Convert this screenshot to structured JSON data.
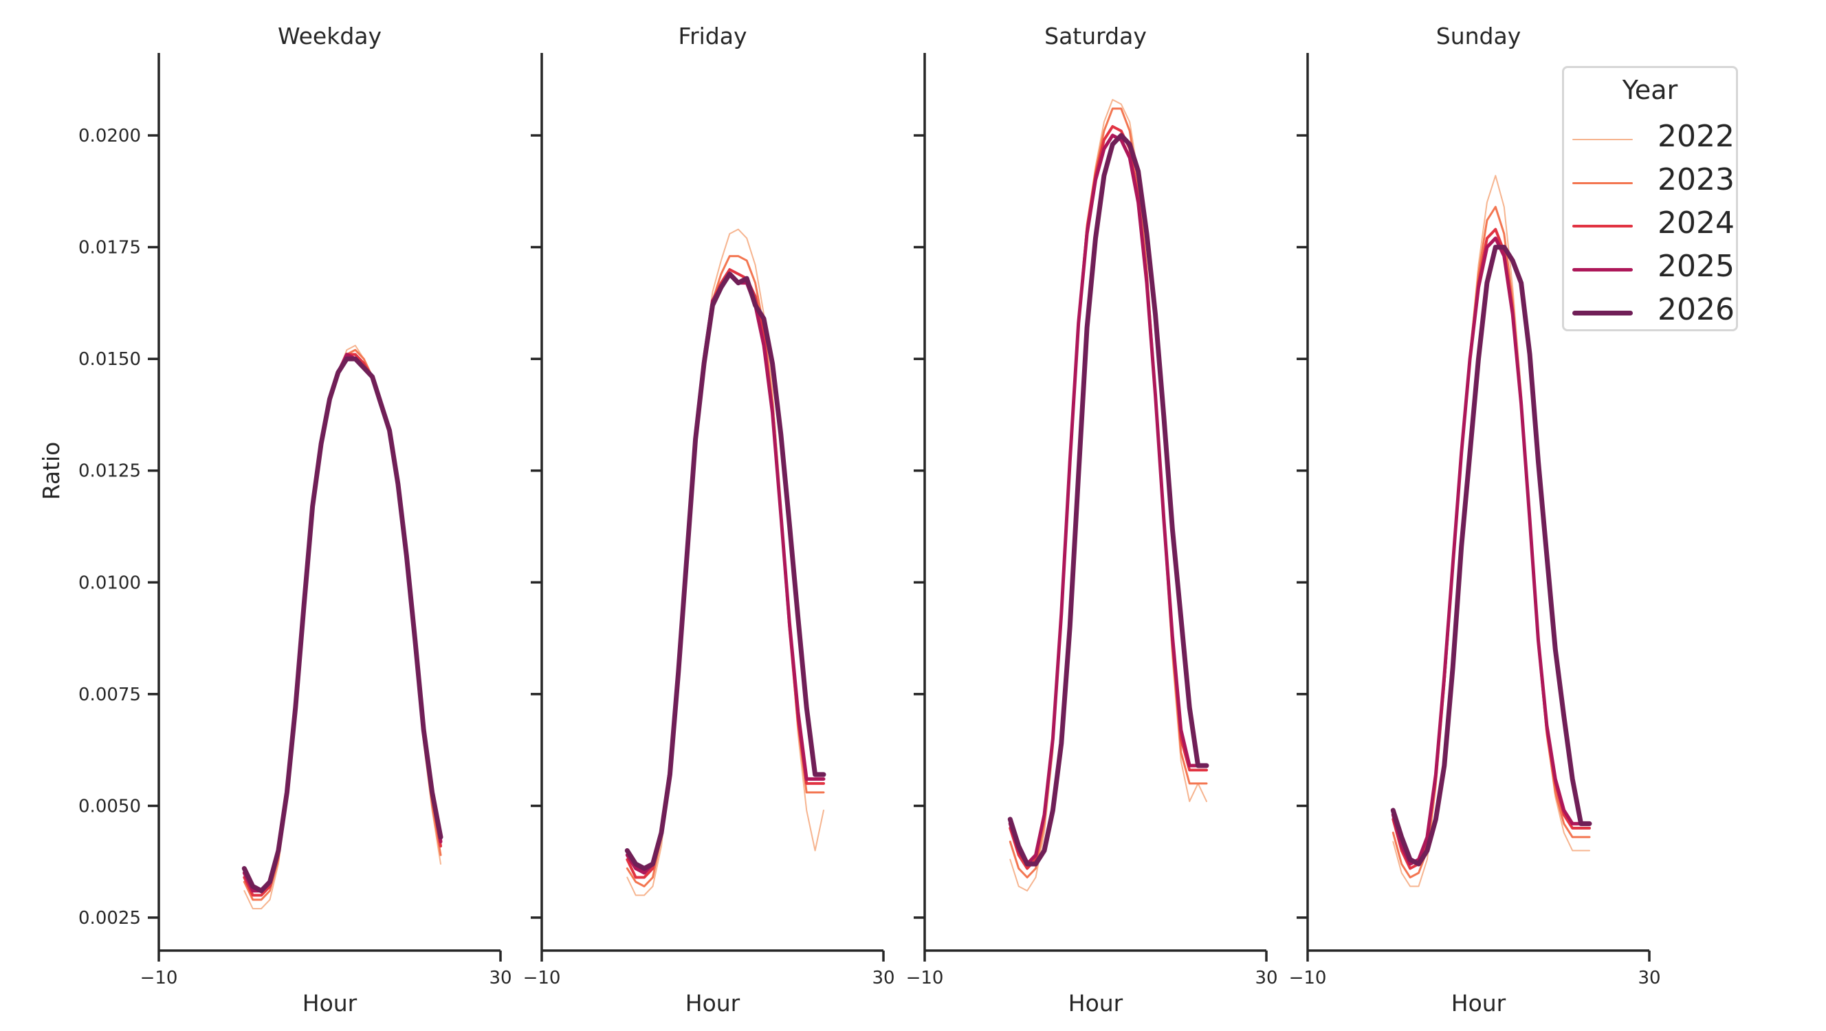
{
  "chart_data": {
    "type": "line",
    "layout": "facet-columns",
    "panels": [
      "Weekday",
      "Friday",
      "Saturday",
      "Sunday"
    ],
    "xlabel": "Hour",
    "ylabel": "Ratio",
    "xlim": [
      -10,
      30
    ],
    "xticks": [
      -10,
      30
    ],
    "ylim": [
      0.00175,
      0.02185
    ],
    "yticks": [
      0.0025,
      0.005,
      0.0075,
      0.01,
      0.0125,
      0.015,
      0.0175,
      0.02
    ],
    "ytick_labels": [
      "0.0025",
      "0.0050",
      "0.0075",
      "0.0100",
      "0.0125",
      "0.0150",
      "0.0175",
      "0.0200"
    ],
    "grid": false,
    "legend": {
      "title": "Year",
      "position": "upper right"
    },
    "x": [
      0,
      1,
      2,
      3,
      4,
      5,
      6,
      7,
      8,
      9,
      10,
      11,
      12,
      13,
      14,
      15,
      16,
      17,
      18,
      19,
      20,
      21,
      22,
      23
    ],
    "series": [
      {
        "name": "2022",
        "color": "#f6b48f",
        "width": 2,
        "panels": {
          "Weekday": [
            0.0031,
            0.0027,
            0.0027,
            0.0029,
            0.0037,
            0.0051,
            0.0071,
            0.0094,
            0.0116,
            0.0131,
            0.0141,
            0.0147,
            0.0152,
            0.0153,
            0.015,
            0.0146,
            0.014,
            0.0133,
            0.0121,
            0.0104,
            0.0084,
            0.0064,
            0.0049,
            0.0037
          ],
          "Friday": [
            0.0034,
            0.003,
            0.003,
            0.0032,
            0.0041,
            0.0057,
            0.008,
            0.0106,
            0.0132,
            0.0151,
            0.0165,
            0.0172,
            0.0178,
            0.0179,
            0.0177,
            0.0171,
            0.016,
            0.0143,
            0.0118,
            0.009,
            0.0066,
            0.0049,
            0.004,
            0.0049
          ],
          "Saturday": [
            0.0038,
            0.0032,
            0.0031,
            0.0034,
            0.0044,
            0.0062,
            0.0091,
            0.0125,
            0.0158,
            0.018,
            0.0193,
            0.0203,
            0.0208,
            0.0207,
            0.0203,
            0.0191,
            0.0171,
            0.0143,
            0.0112,
            0.0083,
            0.006,
            0.0051,
            0.0055,
            0.0051
          ],
          "Sunday": [
            0.0042,
            0.0035,
            0.0032,
            0.0032,
            0.0038,
            0.0054,
            0.0076,
            0.0102,
            0.0128,
            0.0151,
            0.0171,
            0.0185,
            0.0191,
            0.0184,
            0.0166,
            0.0143,
            0.0115,
            0.0086,
            0.0066,
            0.0052,
            0.0044,
            0.004,
            0.004,
            0.004
          ]
        }
      },
      {
        "name": "2023",
        "color": "#f37651",
        "width": 3,
        "panels": {
          "Weekday": [
            0.0033,
            0.0029,
            0.0029,
            0.0031,
            0.0038,
            0.0052,
            0.0072,
            0.0095,
            0.0117,
            0.0131,
            0.0141,
            0.0147,
            0.0151,
            0.0152,
            0.015,
            0.0146,
            0.014,
            0.0133,
            0.0121,
            0.0105,
            0.0085,
            0.0065,
            0.005,
            0.0039
          ],
          "Friday": [
            0.0036,
            0.0033,
            0.0032,
            0.0034,
            0.0043,
            0.0058,
            0.0081,
            0.0107,
            0.0133,
            0.015,
            0.0163,
            0.0169,
            0.0173,
            0.0173,
            0.0172,
            0.0167,
            0.0157,
            0.014,
            0.0116,
            0.009,
            0.0068,
            0.0053,
            0.0053,
            0.0053
          ],
          "Saturday": [
            0.0042,
            0.0036,
            0.0034,
            0.0036,
            0.0046,
            0.0064,
            0.0092,
            0.0126,
            0.0158,
            0.018,
            0.0192,
            0.0201,
            0.0206,
            0.0206,
            0.0201,
            0.0189,
            0.017,
            0.0143,
            0.0113,
            0.0085,
            0.0062,
            0.0055,
            0.0055,
            0.0055
          ],
          "Sunday": [
            0.0044,
            0.0037,
            0.0034,
            0.0035,
            0.004,
            0.0055,
            0.0077,
            0.0103,
            0.0129,
            0.0151,
            0.0169,
            0.0181,
            0.0184,
            0.0178,
            0.0163,
            0.0141,
            0.0114,
            0.0086,
            0.0066,
            0.0053,
            0.0046,
            0.0043,
            0.0043,
            0.0043
          ]
        }
      },
      {
        "name": "2024",
        "color": "#e13342",
        "width": 4,
        "panels": {
          "Weekday": [
            0.0034,
            0.003,
            0.003,
            0.0032,
            0.0039,
            0.0053,
            0.0072,
            0.0095,
            0.0117,
            0.0131,
            0.0141,
            0.0147,
            0.0151,
            0.0151,
            0.0149,
            0.0146,
            0.014,
            0.0134,
            0.0122,
            0.0106,
            0.0086,
            0.0066,
            0.0052,
            0.0041
          ],
          "Friday": [
            0.0038,
            0.0034,
            0.0034,
            0.0036,
            0.0044,
            0.0058,
            0.0081,
            0.0107,
            0.0133,
            0.015,
            0.0163,
            0.0167,
            0.017,
            0.0169,
            0.0168,
            0.0164,
            0.0155,
            0.0139,
            0.0115,
            0.009,
            0.0069,
            0.0055,
            0.0055,
            0.0055
          ],
          "Saturday": [
            0.0045,
            0.0039,
            0.0036,
            0.0038,
            0.0048,
            0.0065,
            0.0093,
            0.0127,
            0.0158,
            0.0179,
            0.0191,
            0.0199,
            0.0202,
            0.0201,
            0.0197,
            0.0186,
            0.0168,
            0.0142,
            0.0114,
            0.0087,
            0.0065,
            0.0058,
            0.0058,
            0.0058
          ],
          "Sunday": [
            0.0047,
            0.004,
            0.0036,
            0.0037,
            0.0042,
            0.0057,
            0.0078,
            0.0104,
            0.0129,
            0.015,
            0.0167,
            0.0177,
            0.0179,
            0.0174,
            0.0161,
            0.014,
            0.0114,
            0.0087,
            0.0067,
            0.0055,
            0.0048,
            0.0045,
            0.0045,
            0.0045
          ]
        }
      },
      {
        "name": "2025",
        "color": "#ad1759",
        "width": 5,
        "panels": {
          "Weekday": [
            0.0035,
            0.0031,
            0.0031,
            0.0033,
            0.004,
            0.0053,
            0.0072,
            0.0095,
            0.0117,
            0.0131,
            0.0141,
            0.0147,
            0.0151,
            0.015,
            0.0148,
            0.0146,
            0.014,
            0.0134,
            0.0122,
            0.0106,
            0.0087,
            0.0067,
            0.0053,
            0.0042
          ],
          "Friday": [
            0.0039,
            0.0036,
            0.0035,
            0.0037,
            0.0044,
            0.0058,
            0.0081,
            0.0107,
            0.0133,
            0.015,
            0.0163,
            0.0166,
            0.0169,
            0.0167,
            0.0167,
            0.0162,
            0.0153,
            0.0138,
            0.0115,
            0.0091,
            0.0071,
            0.0056,
            0.0056,
            0.0056
          ],
          "Saturday": [
            0.0046,
            0.004,
            0.0037,
            0.0039,
            0.0048,
            0.0065,
            0.0093,
            0.0127,
            0.0158,
            0.0178,
            0.019,
            0.0197,
            0.02,
            0.0199,
            0.0195,
            0.0185,
            0.0167,
            0.0142,
            0.0114,
            0.0088,
            0.0067,
            0.0059,
            0.0059,
            0.0059
          ],
          "Sunday": [
            0.0048,
            0.0041,
            0.0037,
            0.0038,
            0.0043,
            0.0057,
            0.0079,
            0.0104,
            0.0129,
            0.015,
            0.0166,
            0.0175,
            0.0177,
            0.0173,
            0.016,
            0.014,
            0.0114,
            0.0087,
            0.0068,
            0.0056,
            0.0049,
            0.0046,
            0.0046,
            0.0046
          ]
        }
      },
      {
        "name": "2026",
        "color": "#701f57",
        "width": 7,
        "panels": {
          "Weekday": [
            0.0036,
            0.0032,
            0.0031,
            0.0033,
            0.004,
            0.0053,
            0.0072,
            0.0095,
            0.0117,
            0.0131,
            0.0141,
            0.0147,
            0.015,
            0.015,
            0.0148,
            0.0146,
            0.014,
            0.0134,
            0.0122,
            0.0106,
            0.0087,
            0.0067,
            0.0053,
            0.0043
          ],
          "Friday": [
            0.004,
            0.0037,
            0.0036,
            0.0037,
            0.0044,
            0.0057,
            0.008,
            0.0106,
            0.0132,
            0.0149,
            0.0162,
            0.0166,
            0.0169,
            0.0167,
            0.0168,
            0.0162,
            0.0159,
            0.0149,
            0.0133,
            0.0113,
            0.0092,
            0.0072,
            0.0057,
            0.0057
          ],
          "Saturday": [
            0.0047,
            0.0041,
            0.0037,
            0.0037,
            0.004,
            0.0049,
            0.0064,
            0.009,
            0.0124,
            0.0157,
            0.0177,
            0.0191,
            0.0198,
            0.02,
            0.0198,
            0.0192,
            0.0178,
            0.016,
            0.0137,
            0.0112,
            0.0092,
            0.0072,
            0.0059,
            0.0059
          ],
          "Sunday": [
            0.0049,
            0.0043,
            0.0038,
            0.0037,
            0.004,
            0.0047,
            0.0059,
            0.0081,
            0.0108,
            0.0129,
            0.015,
            0.0167,
            0.0175,
            0.0175,
            0.0172,
            0.0167,
            0.0151,
            0.0127,
            0.0106,
            0.0085,
            0.007,
            0.0056,
            0.0046,
            0.0046
          ]
        }
      }
    ]
  }
}
